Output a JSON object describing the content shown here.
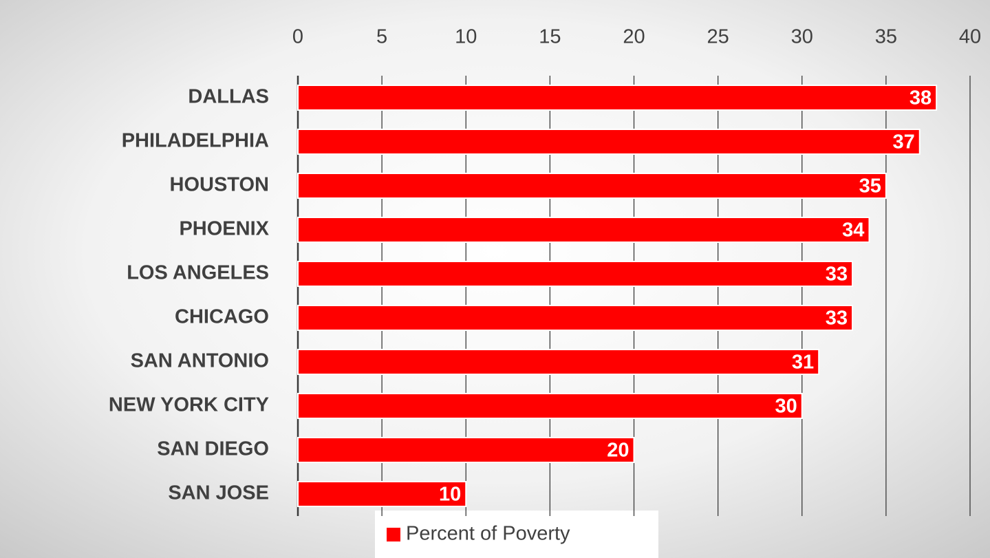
{
  "chart_data": {
    "type": "bar",
    "orientation": "horizontal",
    "categories": [
      "DALLAS",
      "PHILADELPHIA",
      "HOUSTON",
      "PHOENIX",
      "LOS ANGELES",
      "CHICAGO",
      "SAN ANTONIO",
      "NEW YORK CITY",
      "SAN DIEGO",
      "SAN JOSE"
    ],
    "series": [
      {
        "name": "Percent of Poverty",
        "color": "#ff0000",
        "values": [
          38,
          37,
          35,
          34,
          33,
          33,
          31,
          30,
          20,
          10
        ]
      }
    ],
    "xlim": [
      0,
      40
    ],
    "xticks": [
      0,
      5,
      10,
      15,
      20,
      25,
      30,
      35,
      40
    ],
    "grid": true,
    "legend": "bottom"
  }
}
